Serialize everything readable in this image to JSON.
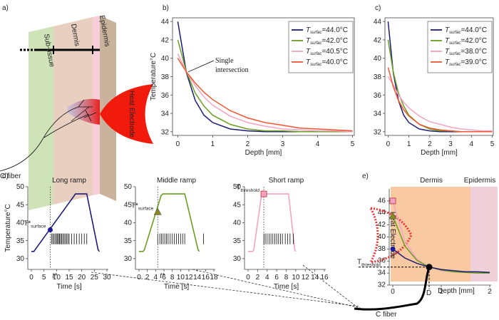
{
  "panel_labels": [
    "a)",
    "b)",
    "c)",
    "d)",
    "e)"
  ],
  "diagram_a": {
    "layers": [
      "Sub-tissue",
      "Dermis",
      "Epidermis"
    ],
    "electrode": "Heat Electrode",
    "fiber": "C fiber"
  },
  "chart_data": [
    {
      "type": "line",
      "xlabel": "Depth [mm]",
      "ylabel": "Temperature°C",
      "frame": true,
      "annotation": [
        "Single",
        "intersection"
      ],
      "x": [
        0,
        0.25,
        0.5,
        0.75,
        1,
        1.5,
        2,
        2.5,
        3,
        3.5,
        4,
        4.5,
        5
      ],
      "xlim": [
        -0.15,
        5.05
      ],
      "ylim": [
        31.6,
        44.4
      ],
      "xticks": [
        0,
        1,
        2,
        3,
        4,
        5
      ],
      "yticks": [
        32,
        34,
        36,
        38,
        40,
        42,
        44
      ],
      "series": [
        {
          "name": "Tsurfac=44.0°C",
          "color": "#1c1c78",
          "values": [
            44,
            38.4,
            35.4,
            33.8,
            33.0,
            32.3,
            32.1,
            32.0,
            32,
            32,
            32,
            32,
            32
          ]
        },
        {
          "name": "Tsurfac=42.0°C",
          "color": "#6a9e1e",
          "values": [
            42,
            38.5,
            36.2,
            34.8,
            33.8,
            32.8,
            32.3,
            32.1,
            32.1,
            32,
            32,
            32,
            32
          ]
        },
        {
          "name": "Tsurfac=40.5°C",
          "color": "#f4a3c4",
          "values": [
            40.5,
            38.5,
            37.0,
            35.8,
            34.9,
            33.7,
            33.0,
            32.6,
            32.3,
            32.2,
            32.1,
            32.1,
            32.0
          ]
        },
        {
          "name": "Tsurfac=40.0°C",
          "color": "#f2552f",
          "values": [
            40,
            38.5,
            37.3,
            36.3,
            35.5,
            34.3,
            33.5,
            33.0,
            32.7,
            32.4,
            32.3,
            32.2,
            32.1
          ]
        }
      ]
    },
    {
      "type": "line",
      "xlabel": "Depth [mm]",
      "frame": true,
      "x": [
        0,
        0.25,
        0.5,
        0.75,
        1,
        1.5,
        2,
        2.5,
        3,
        3.5,
        4,
        4.5,
        5
      ],
      "xlim": [
        -0.15,
        5.05
      ],
      "ylim": [
        31.6,
        44.4
      ],
      "xticks": [
        0,
        1,
        2,
        3,
        4,
        5
      ],
      "yticks": [
        32,
        34,
        36,
        38,
        40,
        42,
        44
      ],
      "series": [
        {
          "name": "Tsurfac=44.0°C",
          "color": "#1c1c78",
          "values": [
            44,
            38.4,
            35.4,
            33.8,
            33.0,
            32.3,
            32.1,
            32.0,
            32,
            32,
            32,
            32,
            32
          ]
        },
        {
          "name": "Tsurfac=42.0°C",
          "color": "#6a9e1e",
          "values": [
            42,
            38.5,
            36.2,
            34.8,
            33.8,
            32.8,
            32.3,
            32.1,
            32.1,
            32,
            32,
            32,
            32
          ]
        },
        {
          "name": "Tsurfac=38.0°C",
          "color": "#f4a3c4",
          "values": [
            38,
            37.1,
            36.0,
            35.2,
            34.6,
            33.7,
            33.1,
            32.8,
            32.5,
            32.3,
            32.2,
            32.1,
            32.1
          ]
        },
        {
          "name": "Tsurfac=39.0°C",
          "color": "#f2552f",
          "values": [
            39,
            36.9,
            35.4,
            34.4,
            33.7,
            32.8,
            32.4,
            32.2,
            32.1,
            32,
            32,
            32,
            32
          ]
        }
      ]
    },
    {
      "type": "line",
      "title": "Long ramp",
      "xlabel": "Time [s]",
      "ylabel": "Temperature°C",
      "color": "#1c1c78",
      "x": [
        0,
        1,
        1.5,
        17,
        17.5,
        22,
        26.5,
        27
      ],
      "values": [
        32,
        32,
        32.5,
        47.5,
        48,
        48,
        32.5,
        32
      ],
      "xlim": [
        0,
        30
      ],
      "ylim": [
        27,
        50
      ],
      "xticks": [
        0,
        5,
        10,
        15,
        20,
        25,
        30
      ],
      "yticks": [
        30,
        35,
        40,
        45,
        50
      ],
      "marker": {
        "x": 7.5,
        "y": 38,
        "shape": "circle",
        "color": "#1c1c9a",
        "label": "T*",
        "label_sub": "surface"
      },
      "x_annotation": "t*",
      "spikes": [
        8,
        8.5,
        9,
        9.5,
        10,
        10.4,
        10.8,
        11.2,
        11.6,
        12,
        12.5,
        13,
        13.5,
        14,
        14.5,
        15,
        16,
        17,
        18,
        19,
        20,
        21,
        22
      ]
    },
    {
      "type": "line",
      "title": "Middle ramp",
      "xlabel": "Time [s]",
      "color": "#6a9e1e",
      "x": [
        0,
        1,
        1.3,
        5.3,
        5.7,
        11,
        14.2,
        14.5
      ],
      "values": [
        32,
        32,
        32.5,
        47.5,
        48,
        48,
        32.5,
        32
      ],
      "xlim": [
        0,
        18
      ],
      "ylim": [
        27,
        50
      ],
      "xticks": [
        0,
        2,
        4,
        6,
        8,
        10,
        12,
        14,
        16,
        18
      ],
      "yticks": [
        30,
        35,
        40,
        45,
        50
      ],
      "marker": {
        "x": 4.5,
        "y": 43,
        "shape": "triangle",
        "color": "#8a8a1e",
        "label": "T*",
        "label_sub": "surface"
      },
      "x_annotation": "t*",
      "spikes": [
        4.5,
        5,
        5.4,
        5.8,
        6.2,
        6.6,
        7,
        7.5,
        8,
        8.5,
        9,
        9.5,
        10,
        10.5,
        11,
        15.5
      ]
    },
    {
      "type": "line",
      "title": "Short ramp",
      "xlabel": "Time [s]",
      "color": "#f4a3c4",
      "x": [
        0,
        1,
        1.2,
        2.8,
        3.1,
        8.5,
        9.8,
        10
      ],
      "values": [
        32,
        32,
        32.5,
        47.5,
        48,
        48,
        32.5,
        32
      ],
      "xlim": [
        0,
        16
      ],
      "ylim": [
        27,
        50
      ],
      "xticks": [
        0,
        2,
        4,
        6,
        8,
        10,
        12,
        14,
        16
      ],
      "yticks": [
        30,
        35,
        40,
        45,
        50
      ],
      "marker": {
        "x": 3.3,
        "y": 48,
        "shape": "square",
        "color": "#f4a3c4",
        "label": "T",
        "label_sub": "threshold"
      },
      "spikes": [
        3.3,
        3.6,
        4,
        4.4,
        4.8,
        5.2,
        5.6,
        6,
        6.4,
        6.8,
        7.2,
        7.8,
        8.3,
        8.8,
        9.5
      ]
    },
    {
      "type": "line",
      "xlabel": "Depth [mm]",
      "regions": [
        "Dermis",
        "Epidermis"
      ],
      "electrode": "Heat Electrode",
      "fiber": "C fiber",
      "x": [
        0,
        0.25,
        0.5,
        0.75,
        1,
        1.25,
        1.5,
        1.75,
        2
      ],
      "xlim": [
        0,
        2
      ],
      "ylim": [
        32,
        48
      ],
      "xticks": [
        0,
        1,
        2
      ],
      "yticks": [
        32,
        34,
        36,
        38,
        40,
        42,
        44,
        46
      ],
      "series": [
        {
          "color": "#f4a3c4",
          "values": [
            46,
            39.2,
            36.3,
            35.0,
            34.4,
            34.2,
            34.1,
            34.0,
            34.0
          ]
        },
        {
          "color": "#6a9e1e",
          "values": [
            43.5,
            38.5,
            36.1,
            35.0,
            34.5,
            34.2,
            34.1,
            34.0,
            34.0
          ]
        },
        {
          "color": "#1c1c78",
          "values": [
            38,
            36.5,
            35.6,
            35.0,
            34.6,
            34.4,
            34.2,
            34.2,
            34.1
          ]
        }
      ],
      "markers": [
        {
          "x": 0,
          "y": 46,
          "shape": "square",
          "color": "#f4a3c4"
        },
        {
          "x": 0,
          "y": 43.5,
          "shape": "triangle",
          "color": "#8a8a1e"
        },
        {
          "x": 0,
          "y": 38,
          "shape": "circle",
          "color": "#1c1c9a"
        }
      ],
      "threshold": {
        "x": 0.75,
        "y": 35,
        "label": "T",
        "label_sub": "threshold",
        "x_label": "D"
      }
    }
  ]
}
